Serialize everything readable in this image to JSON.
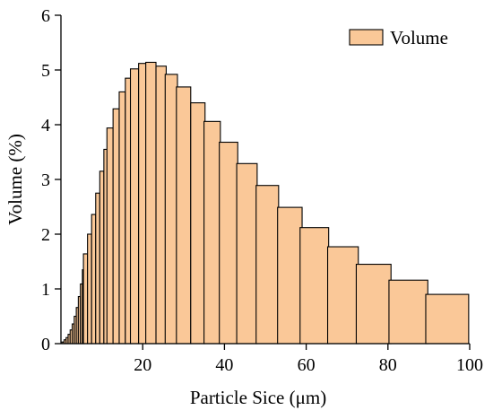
{
  "colors": {
    "bar_fill": "#FAC898",
    "bar_stroke": "#000000",
    "axis": "#000000"
  },
  "chart_data": {
    "type": "bar",
    "xlabel": "Particle Sice (μm)",
    "ylabel": "Volume (%)",
    "xlim": [
      0,
      100
    ],
    "ylim": [
      0,
      6
    ],
    "xticks": [
      20,
      40,
      60,
      80,
      100
    ],
    "yticks": [
      0,
      1,
      2,
      3,
      4,
      5,
      6
    ],
    "legend": {
      "position": "top-right",
      "entries": [
        "Volume"
      ]
    },
    "grid": false,
    "series": [
      {
        "name": "Volume",
        "x": [
          0.5,
          1,
          1.5,
          2,
          2.5,
          3,
          3.5,
          4,
          4.5,
          5,
          5.5,
          6,
          7,
          8,
          9,
          10,
          11,
          12,
          13.5,
          15,
          16.5,
          18,
          20,
          22,
          24.5,
          27,
          30,
          33.5,
          37,
          41,
          45.5,
          50.5,
          56,
          62,
          69,
          76.5,
          85,
          94.5
        ],
        "values": [
          0.03,
          0.07,
          0.11,
          0.17,
          0.25,
          0.36,
          0.5,
          0.66,
          0.86,
          1.09,
          1.35,
          1.64,
          2.0,
          2.36,
          2.75,
          3.15,
          3.55,
          3.94,
          4.29,
          4.6,
          4.85,
          5.02,
          5.12,
          5.14,
          5.07,
          4.92,
          4.69,
          4.4,
          4.06,
          3.68,
          3.29,
          2.89,
          2.49,
          2.12,
          1.77,
          1.45,
          1.16,
          0.9
        ],
        "widths": [
          0.5,
          0.5,
          0.5,
          0.5,
          0.5,
          0.5,
          0.5,
          0.5,
          0.5,
          0.5,
          0.5,
          1,
          1,
          1,
          1,
          1,
          1,
          1.5,
          1.5,
          1.5,
          1.5,
          2,
          2,
          2.5,
          2.5,
          3,
          3.5,
          3.5,
          4,
          4.5,
          5,
          5.5,
          6,
          7,
          7.5,
          8.5,
          9.5,
          10.5
        ]
      }
    ]
  }
}
